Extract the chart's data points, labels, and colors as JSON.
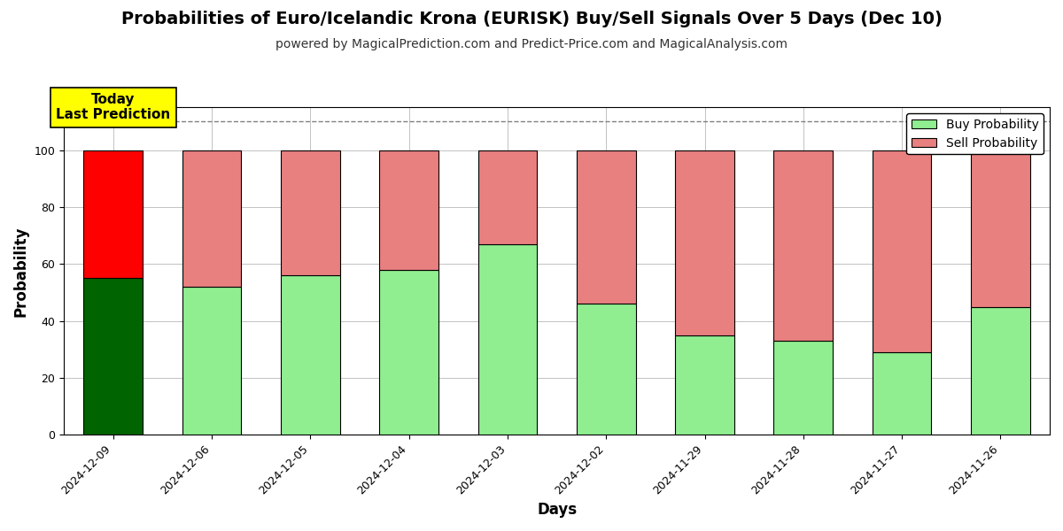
{
  "title": "Probabilities of Euro/Icelandic Krona (EURISK) Buy/Sell Signals Over 5 Days (Dec 10)",
  "subtitle": "powered by MagicalPrediction.com and Predict-Price.com and MagicalAnalysis.com",
  "xlabel": "Days",
  "ylabel": "Probability",
  "dates": [
    "2024-12-09",
    "2024-12-06",
    "2024-12-05",
    "2024-12-04",
    "2024-12-03",
    "2024-12-02",
    "2024-11-29",
    "2024-11-28",
    "2024-11-27",
    "2024-11-26"
  ],
  "buy_values": [
    55,
    52,
    56,
    58,
    67,
    46,
    35,
    33,
    29,
    45
  ],
  "sell_values": [
    45,
    48,
    44,
    42,
    33,
    54,
    65,
    67,
    71,
    55
  ],
  "today_buy_color": "#006400",
  "today_sell_color": "#ff0000",
  "buy_color": "#90EE90",
  "sell_color": "#E88080",
  "bar_edge_color": "#000000",
  "today_label_bg": "#ffff00",
  "today_label_text": "Today\nLast Prediction",
  "legend_buy_label": "Buy Probability",
  "legend_sell_label": "Sell Probability",
  "ylim": [
    0,
    115
  ],
  "yticks": [
    0,
    20,
    40,
    60,
    80,
    100
  ],
  "dashed_line_y": 110,
  "background_color": "#ffffff",
  "grid_color": "#aaaaaa",
  "title_fontsize": 14,
  "subtitle_fontsize": 10,
  "axis_label_fontsize": 12,
  "tick_fontsize": 9,
  "legend_fontsize": 10
}
